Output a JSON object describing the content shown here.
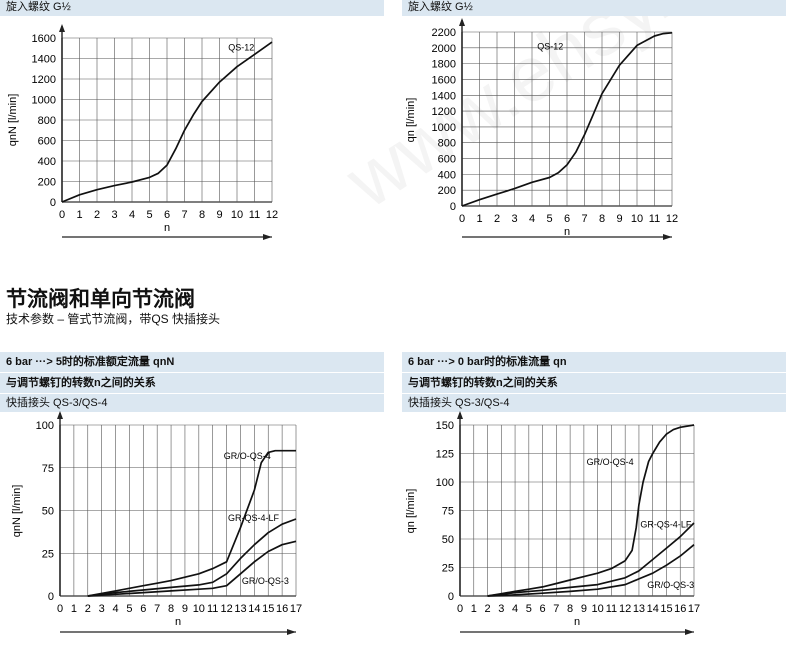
{
  "headers": {
    "top_left": "旋入螺纹 G½",
    "top_right": "旋入螺纹 G½"
  },
  "section": {
    "title": "节流阀和单向节流阀",
    "subtitle": "技术参数 – 管式节流阀，带QS 快插接头"
  },
  "bottom_left_header": {
    "line1": "6 bar ···> 5时的标准额定流量 qnN",
    "line2": "与调节螺钉的转数n之间的关系",
    "line3": "快插接头 QS-3/QS-4"
  },
  "bottom_right_header": {
    "line1": "6 bar ···> 0 bar时的标准流量 qn",
    "line2": "与调节螺钉的转数n之间的关系",
    "line3": "快插接头 QS-3/QS-4"
  },
  "watermark": "www.ehsy.com",
  "chart_data": [
    {
      "type": "line",
      "xlabel": "n",
      "ylabel": "qnN [l/min]",
      "xlim": [
        0,
        12
      ],
      "ylim": [
        0,
        1600
      ],
      "xticks": [
        0,
        1,
        2,
        3,
        4,
        5,
        6,
        7,
        8,
        9,
        10,
        11,
        12
      ],
      "yticks": [
        0,
        200,
        400,
        600,
        800,
        1000,
        1200,
        1400,
        1600
      ],
      "grid": true,
      "series": [
        {
          "name": "QS-12",
          "label_at": [
            9.5,
            1480
          ],
          "x": [
            0,
            1,
            2,
            3,
            4,
            5,
            5.5,
            6,
            6.5,
            7,
            7.5,
            8,
            9,
            10,
            11,
            12
          ],
          "y": [
            0,
            70,
            120,
            160,
            195,
            240,
            280,
            360,
            520,
            700,
            850,
            980,
            1170,
            1320,
            1440,
            1560
          ]
        }
      ]
    },
    {
      "type": "line",
      "xlabel": "n",
      "ylabel": "qn [l/min]",
      "xlim": [
        0,
        12
      ],
      "ylim": [
        0,
        2200
      ],
      "xticks": [
        0,
        1,
        2,
        3,
        4,
        5,
        6,
        7,
        8,
        9,
        10,
        11,
        12
      ],
      "yticks": [
        0,
        200,
        400,
        600,
        800,
        1000,
        1200,
        1400,
        1600,
        1800,
        2000,
        2200
      ],
      "grid": true,
      "series": [
        {
          "name": "QS-12",
          "label_at": [
            4.3,
            1980
          ],
          "x": [
            0,
            1,
            2,
            3,
            4,
            5,
            5.5,
            6,
            6.5,
            7,
            7.5,
            8,
            9,
            10,
            11,
            11.5,
            12
          ],
          "y": [
            0,
            80,
            150,
            220,
            300,
            360,
            420,
            520,
            680,
            900,
            1160,
            1420,
            1780,
            2030,
            2150,
            2180,
            2190
          ]
        }
      ]
    },
    {
      "type": "line",
      "xlabel": "n",
      "ylabel": "qnN [l/min]",
      "xlim": [
        0,
        17
      ],
      "ylim": [
        0,
        100
      ],
      "xticks": [
        0,
        1,
        2,
        3,
        4,
        5,
        6,
        7,
        8,
        9,
        10,
        11,
        12,
        13,
        14,
        15,
        16,
        17
      ],
      "yticks": [
        0,
        25,
        50,
        75,
        100
      ],
      "grid": true,
      "series": [
        {
          "name": "GR/O-QS-4",
          "label_at": [
            11.8,
            80
          ],
          "x": [
            2,
            3,
            4,
            5,
            6,
            7,
            8,
            9,
            10,
            11,
            12,
            13,
            14,
            14.5,
            15,
            15.5,
            16,
            17
          ],
          "y": [
            0,
            1.5,
            3,
            4.5,
            6,
            7.5,
            9,
            11,
            13,
            16,
            20,
            40,
            62,
            78,
            84,
            85,
            85,
            85
          ]
        },
        {
          "name": "GR-QS-4-LF",
          "label_at": [
            12.1,
            44
          ],
          "x": [
            2,
            4,
            6,
            8,
            10,
            11,
            12,
            13,
            14,
            15,
            16,
            17
          ],
          "y": [
            0,
            2,
            3.5,
            5,
            6.5,
            8,
            13,
            22,
            30,
            37,
            42,
            45
          ]
        },
        {
          "name": "GR/O-QS-3",
          "label_at": [
            13.1,
            7
          ],
          "x": [
            2,
            4,
            6,
            8,
            10,
            11,
            12,
            13,
            14,
            15,
            16,
            17
          ],
          "y": [
            0,
            1,
            2,
            3,
            4,
            4.5,
            6,
            13,
            20,
            26,
            30,
            32
          ]
        }
      ]
    },
    {
      "type": "line",
      "xlabel": "n",
      "ylabel": "qn [l/min]",
      "xlim": [
        0,
        17
      ],
      "ylim": [
        0,
        150
      ],
      "xticks": [
        0,
        1,
        2,
        3,
        4,
        5,
        6,
        7,
        8,
        9,
        10,
        11,
        12,
        13,
        14,
        15,
        16,
        17
      ],
      "yticks": [
        0,
        25,
        50,
        75,
        100,
        125,
        150
      ],
      "grid": true,
      "series": [
        {
          "name": "GR/O-QS-4",
          "label_at": [
            9.2,
            115
          ],
          "x": [
            2,
            3,
            4,
            5,
            6,
            7,
            8,
            9,
            10,
            11,
            12,
            12.5,
            12.8,
            13,
            13.3,
            13.7,
            14,
            14.5,
            15,
            15.5,
            16,
            17
          ],
          "y": [
            0,
            2,
            4,
            6,
            8,
            11,
            14,
            17,
            20,
            24,
            31,
            40,
            60,
            80,
            100,
            118,
            125,
            135,
            142,
            146,
            148,
            150
          ]
        },
        {
          "name": "GR-QS-4-LF",
          "label_at": [
            13.1,
            60
          ],
          "x": [
            2,
            4,
            6,
            8,
            10,
            12,
            13,
            14,
            15,
            16,
            17
          ],
          "y": [
            0,
            3,
            5,
            7.5,
            10,
            16,
            22,
            32,
            42,
            52,
            64
          ]
        },
        {
          "name": "GR/O-QS-3",
          "label_at": [
            13.6,
            7
          ],
          "x": [
            2,
            4,
            6,
            8,
            10,
            12,
            13,
            14,
            15,
            16,
            17
          ],
          "y": [
            0,
            1,
            2.5,
            4,
            6,
            10,
            15,
            20,
            27,
            35,
            45
          ]
        }
      ]
    }
  ]
}
